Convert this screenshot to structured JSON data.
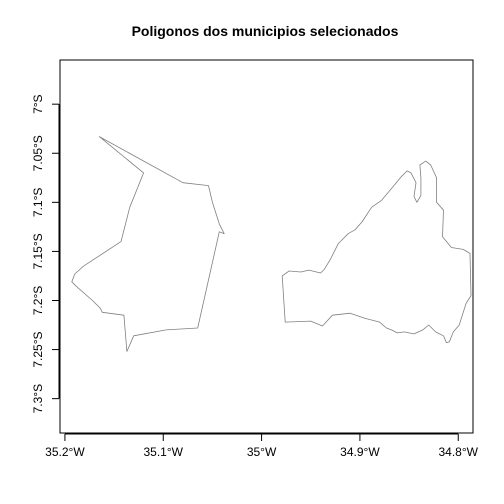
{
  "title": "Poligonos dos municipios selecionados",
  "map": {
    "x_range": [
      -35.205,
      -34.785
    ],
    "y_range": [
      -7.335,
      -6.955
    ],
    "x_ticks": [
      {
        "value": -35.2,
        "label": "35.2°W"
      },
      {
        "value": -35.1,
        "label": "35.1°W"
      },
      {
        "value": -35.0,
        "label": "35°W"
      },
      {
        "value": -34.9,
        "label": "34.9°W"
      },
      {
        "value": -34.8,
        "label": "34.8°W"
      }
    ],
    "y_ticks": [
      {
        "value": -7.0,
        "label": "7°S"
      },
      {
        "value": -7.05,
        "label": "7.05°S"
      },
      {
        "value": -7.1,
        "label": "7.1°S"
      },
      {
        "value": -7.15,
        "label": "7.15°S"
      },
      {
        "value": -7.2,
        "label": "7.2°S"
      },
      {
        "value": -7.25,
        "label": "7.25°S"
      },
      {
        "value": -7.3,
        "label": "7.3°S"
      }
    ],
    "polygon_color": "#808080",
    "polygons": [
      {
        "coords": [
          [
            -35.165,
            -7.033
          ],
          [
            -35.12,
            -7.07
          ],
          [
            -35.134,
            -7.105
          ],
          [
            -35.143,
            -7.14
          ],
          [
            -35.181,
            -7.165
          ],
          [
            -35.19,
            -7.173
          ],
          [
            -35.193,
            -7.181
          ],
          [
            -35.188,
            -7.186
          ],
          [
            -35.172,
            -7.2
          ],
          [
            -35.166,
            -7.206
          ],
          [
            -35.164,
            -7.208
          ],
          [
            -35.162,
            -7.212
          ],
          [
            -35.14,
            -7.215
          ],
          [
            -35.137,
            -7.252
          ],
          [
            -35.13,
            -7.236
          ],
          [
            -35.097,
            -7.23
          ],
          [
            -35.065,
            -7.228
          ],
          [
            -35.043,
            -7.13
          ],
          [
            -35.038,
            -7.132
          ],
          [
            -35.043,
            -7.122
          ],
          [
            -35.05,
            -7.1
          ],
          [
            -35.054,
            -7.083
          ],
          [
            -35.08,
            -7.08
          ],
          [
            -35.165,
            -7.033
          ]
        ]
      },
      {
        "coords": [
          [
            -34.976,
            -7.222
          ],
          [
            -34.979,
            -7.175
          ],
          [
            -34.972,
            -7.17
          ],
          [
            -34.96,
            -7.171
          ],
          [
            -34.952,
            -7.169
          ],
          [
            -34.94,
            -7.172
          ],
          [
            -34.936,
            -7.168
          ],
          [
            -34.93,
            -7.158
          ],
          [
            -34.922,
            -7.142
          ],
          [
            -34.912,
            -7.132
          ],
          [
            -34.905,
            -7.128
          ],
          [
            -34.898,
            -7.12
          ],
          [
            -34.888,
            -7.105
          ],
          [
            -34.878,
            -7.098
          ],
          [
            -34.868,
            -7.086
          ],
          [
            -34.858,
            -7.074
          ],
          [
            -34.852,
            -7.068
          ],
          [
            -34.848,
            -7.07
          ],
          [
            -34.843,
            -7.08
          ],
          [
            -34.845,
            -7.094
          ],
          [
            -34.842,
            -7.1
          ],
          [
            -34.838,
            -7.093
          ],
          [
            -34.838,
            -7.075
          ],
          [
            -34.839,
            -7.062
          ],
          [
            -34.833,
            -7.058
          ],
          [
            -34.828,
            -7.062
          ],
          [
            -34.822,
            -7.075
          ],
          [
            -34.822,
            -7.1
          ],
          [
            -34.815,
            -7.108
          ],
          [
            -34.816,
            -7.135
          ],
          [
            -34.807,
            -7.146
          ],
          [
            -34.795,
            -7.148
          ],
          [
            -34.788,
            -7.152
          ],
          [
            -34.787,
            -7.195
          ],
          [
            -34.792,
            -7.203
          ],
          [
            -34.799,
            -7.225
          ],
          [
            -34.805,
            -7.232
          ],
          [
            -34.809,
            -7.242
          ],
          [
            -34.812,
            -7.243
          ],
          [
            -34.815,
            -7.236
          ],
          [
            -34.823,
            -7.232
          ],
          [
            -34.83,
            -7.225
          ],
          [
            -34.836,
            -7.23
          ],
          [
            -34.845,
            -7.234
          ],
          [
            -34.855,
            -7.232
          ],
          [
            -34.862,
            -7.233
          ],
          [
            -34.868,
            -7.23
          ],
          [
            -34.873,
            -7.228
          ],
          [
            -34.88,
            -7.222
          ],
          [
            -34.895,
            -7.218
          ],
          [
            -34.91,
            -7.213
          ],
          [
            -34.928,
            -7.215
          ],
          [
            -34.938,
            -7.226
          ],
          [
            -34.95,
            -7.221
          ],
          [
            -34.976,
            -7.222
          ]
        ]
      }
    ]
  }
}
